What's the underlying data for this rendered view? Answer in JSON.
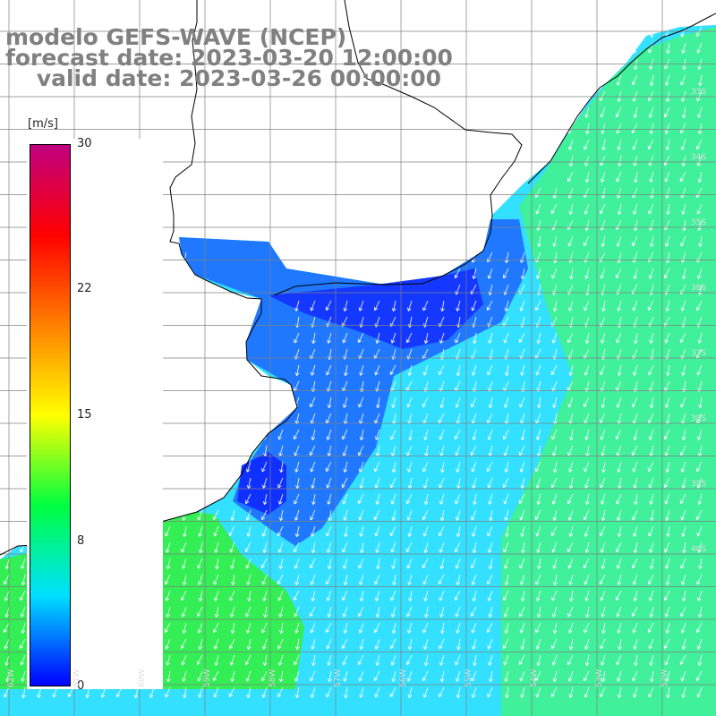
{
  "title": {
    "line1": "modelo GEFS-WAVE (NCEP)",
    "line2": "forecast date: 2023-03-20 12:00:00",
    "line3": "    valid date: 2023-03-26 00:00:00"
  },
  "colorbar": {
    "unit": "[m/s]",
    "ticks": [
      {
        "label": "30",
        "value": 30
      },
      {
        "label": "22",
        "value": 22
      },
      {
        "label": "15",
        "value": 15
      },
      {
        "label": "8",
        "value": 8
      },
      {
        "label": "0",
        "value": 0
      }
    ],
    "colors": [
      "#0000ff",
      "#00e0ff",
      "#00ff40",
      "#ffff00",
      "#ff8000",
      "#ff0000",
      "#c00080"
    ]
  },
  "lat_labels": [
    "33S",
    "34S",
    "35S",
    "36S",
    "37S",
    "38S",
    "39S",
    "40S"
  ],
  "lon_labels": [
    "62W",
    "61W",
    "60W",
    "59W",
    "58W",
    "57W",
    "56W",
    "55W",
    "54W",
    "53W",
    "52W"
  ],
  "colors": {
    "land": "#ffffff",
    "grid": "#808080",
    "coast": "#000000",
    "arrow": "#ffffff"
  }
}
